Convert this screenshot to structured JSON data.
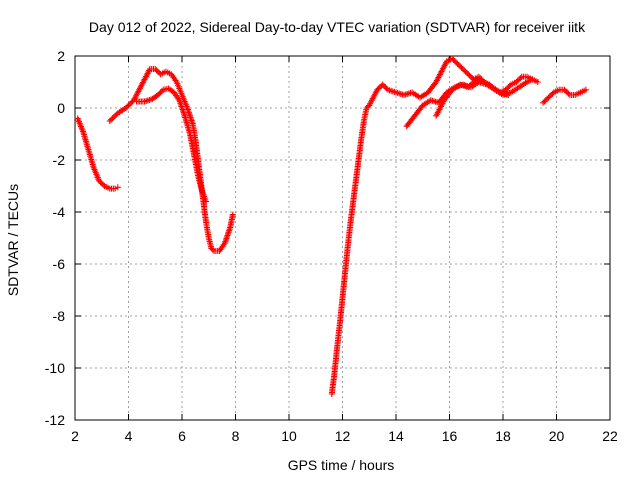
{
  "chart_data": {
    "type": "scatter",
    "title": "Day 012 of 2022, Sidereal Day-to-day VTEC variation (SDTVAR) for receiver iitk",
    "xlabel": "GPS time / hours",
    "ylabel": "SDTVAR / TECUs",
    "xlim": [
      2,
      22
    ],
    "ylim": [
      -12,
      2
    ],
    "xticks": [
      2,
      4,
      6,
      8,
      10,
      12,
      14,
      16,
      18,
      20,
      22
    ],
    "yticks": [
      -12,
      -10,
      -8,
      -6,
      -4,
      -2,
      0,
      2
    ],
    "xtick_labels": [
      "2",
      "4",
      "6",
      "8",
      "10",
      "12",
      "14",
      "16",
      "18",
      "20",
      "22"
    ],
    "ytick_labels": [
      "-12",
      "-10",
      "-8",
      "-6",
      "-4",
      "-2",
      "0",
      "2"
    ],
    "grid": true,
    "marker": "+",
    "colors": {
      "series": "#ff0000",
      "grid": "#a0a0a0",
      "axis": "#000000"
    },
    "series": [
      {
        "x": [
          2.1,
          2.3,
          2.5,
          2.7,
          2.9,
          3.1,
          3.3,
          3.5,
          3.6
        ],
        "y": [
          -0.4,
          -0.9,
          -1.6,
          -2.3,
          -2.8,
          -3.0,
          -3.1,
          -3.1,
          -3.05
        ]
      },
      {
        "x": [
          3.3,
          3.6,
          3.9,
          4.2,
          4.4,
          4.6,
          4.8,
          5.0,
          5.2,
          5.4,
          5.6,
          5.8,
          6.0,
          6.2,
          6.4,
          6.5,
          6.6,
          6.7,
          6.8,
          6.9,
          7.0,
          7.1,
          7.2,
          7.4,
          7.6,
          7.8,
          7.9
        ],
        "y": [
          -0.5,
          -0.2,
          0.0,
          0.3,
          0.7,
          1.1,
          1.5,
          1.5,
          1.3,
          1.4,
          1.3,
          1.0,
          0.5,
          0.0,
          -0.6,
          -1.2,
          -2.0,
          -2.8,
          -3.6,
          -4.4,
          -5.0,
          -5.4,
          -5.5,
          -5.5,
          -5.2,
          -4.6,
          -4.1
        ]
      },
      {
        "x": [
          4.3,
          4.6,
          4.9,
          5.1,
          5.3,
          5.5,
          5.7,
          5.9,
          6.1,
          6.3,
          6.45,
          6.6,
          6.75,
          6.9
        ],
        "y": [
          0.25,
          0.25,
          0.35,
          0.5,
          0.7,
          0.75,
          0.6,
          0.3,
          -0.3,
          -1.0,
          -1.8,
          -2.6,
          -3.2,
          -3.6
        ]
      },
      {
        "x": [
          11.6,
          11.7,
          11.8,
          11.9,
          12.0,
          12.1,
          12.2,
          12.3,
          12.4,
          12.5,
          12.6,
          12.7,
          12.8,
          12.9,
          13.0,
          13.1,
          13.3,
          13.5,
          13.7,
          14.0,
          14.3,
          14.6,
          14.9,
          15.2,
          15.5,
          15.7,
          15.9,
          16.1,
          16.3,
          16.5,
          16.7,
          16.9,
          17.1,
          17.3,
          17.5,
          17.7,
          17.9,
          18.1,
          18.3,
          18.5,
          18.7,
          18.9,
          19.1,
          19.3
        ],
        "y": [
          -11.0,
          -10.2,
          -9.2,
          -8.3,
          -7.3,
          -6.3,
          -5.3,
          -4.4,
          -3.6,
          -2.8,
          -2.0,
          -1.2,
          -0.5,
          0.0,
          0.1,
          0.3,
          0.7,
          0.9,
          0.7,
          0.6,
          0.5,
          0.6,
          0.4,
          0.6,
          1.0,
          1.4,
          1.8,
          1.9,
          1.7,
          1.5,
          1.3,
          1.1,
          1.2,
          1.0,
          0.9,
          0.7,
          0.6,
          0.7,
          0.9,
          1.0,
          1.2,
          1.2,
          1.1,
          1.0
        ]
      },
      {
        "x": [
          14.4,
          14.7,
          15.0,
          15.3,
          15.6,
          15.9,
          16.2,
          16.5,
          16.8,
          17.1,
          17.4,
          17.7,
          18.0,
          18.3,
          18.6,
          18.9,
          19.1
        ],
        "y": [
          -0.7,
          -0.3,
          0.1,
          0.3,
          0.2,
          0.6,
          0.8,
          0.9,
          0.8,
          1.0,
          0.9,
          0.7,
          0.5,
          0.6,
          0.8,
          1.0,
          1.1
        ]
      },
      {
        "x": [
          15.5,
          15.8,
          16.1,
          16.4,
          16.7,
          17.0,
          17.3,
          17.6,
          17.9,
          18.2
        ],
        "y": [
          -0.3,
          0.3,
          0.7,
          0.9,
          0.8,
          1.1,
          1.0,
          0.8,
          0.6,
          0.5
        ]
      },
      {
        "x": [
          19.5,
          19.7,
          19.9,
          20.1,
          20.3,
          20.5,
          20.7,
          20.9,
          21.1
        ],
        "y": [
          0.2,
          0.4,
          0.6,
          0.7,
          0.7,
          0.5,
          0.5,
          0.6,
          0.7
        ]
      }
    ]
  }
}
